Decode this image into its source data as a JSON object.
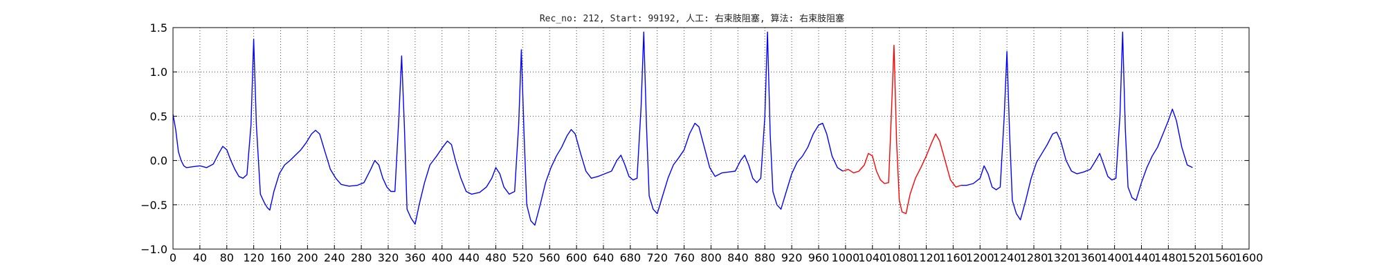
{
  "chart_data": {
    "type": "line",
    "title": "Rec_no: 212, Start: 99192, 人工: 右束肢阻塞, 算法: 右束肢阻塞",
    "xlabel": "",
    "ylabel": "",
    "xlim": [
      0,
      1600
    ],
    "ylim": [
      -1.0,
      1.5
    ],
    "grid": true,
    "y_ticks": [
      -1.0,
      -0.5,
      0.0,
      0.5,
      1.0,
      1.5
    ],
    "y_tick_labels": [
      "−1.0",
      "−0.5",
      "0.0",
      "0.5",
      "1.0",
      "1.5"
    ],
    "x_ticks": [
      0,
      40,
      80,
      120,
      160,
      200,
      240,
      280,
      320,
      360,
      400,
      440,
      480,
      520,
      560,
      600,
      640,
      680,
      720,
      760,
      800,
      840,
      880,
      920,
      960,
      1000,
      1040,
      1080,
      1120,
      1160,
      1200,
      1240,
      1280,
      1320,
      1360,
      1400,
      1440,
      1480,
      1520,
      1560,
      1600
    ],
    "x_tick_labels": [
      "0",
      "40",
      "80",
      "120",
      "160",
      "200",
      "240",
      "280",
      "320",
      "360",
      "400",
      "440",
      "480",
      "520",
      "560",
      "600",
      "640",
      "680",
      "720",
      "760",
      "800",
      "840",
      "880",
      "920",
      "960",
      "1000",
      "1040",
      "1080",
      "1120",
      "1160",
      "1200",
      "1240",
      "1280",
      "1320",
      "1360",
      "1400",
      "1440",
      "1480",
      "1520",
      "1560",
      "1600"
    ],
    "series": [
      {
        "color": "#0000ff",
        "points": [
          [
            0,
            0.52
          ],
          [
            4,
            0.35
          ],
          [
            8,
            0.1
          ],
          [
            12,
            0.0
          ],
          [
            16,
            -0.06
          ],
          [
            20,
            -0.08
          ],
          [
            30,
            -0.07
          ],
          [
            40,
            -0.06
          ],
          [
            50,
            -0.08
          ],
          [
            60,
            -0.04
          ],
          [
            68,
            0.08
          ],
          [
            74,
            0.16
          ],
          [
            80,
            0.12
          ],
          [
            86,
            0.0
          ],
          [
            92,
            -0.1
          ],
          [
            98,
            -0.18
          ],
          [
            104,
            -0.2
          ],
          [
            110,
            -0.16
          ],
          [
            116,
            0.4
          ],
          [
            120,
            1.37
          ],
          [
            124,
            0.4
          ],
          [
            130,
            -0.38
          ],
          [
            136,
            -0.48
          ],
          [
            140,
            -0.53
          ],
          [
            144,
            -0.56
          ],
          [
            150,
            -0.35
          ],
          [
            158,
            -0.15
          ],
          [
            166,
            -0.05
          ],
          [
            174,
            0.0
          ],
          [
            182,
            0.06
          ],
          [
            190,
            0.12
          ],
          [
            198,
            0.2
          ],
          [
            206,
            0.3
          ],
          [
            212,
            0.34
          ],
          [
            218,
            0.3
          ],
          [
            226,
            0.1
          ],
          [
            234,
            -0.1
          ],
          [
            242,
            -0.2
          ],
          [
            250,
            -0.27
          ],
          [
            262,
            -0.29
          ],
          [
            274,
            -0.28
          ],
          [
            284,
            -0.25
          ],
          [
            294,
            -0.1
          ],
          [
            300,
            0.0
          ],
          [
            306,
            -0.05
          ],
          [
            312,
            -0.2
          ],
          [
            318,
            -0.3
          ],
          [
            324,
            -0.35
          ],
          [
            330,
            -0.35
          ],
          [
            336,
            0.5
          ],
          [
            340,
            1.18
          ],
          [
            344,
            0.4
          ],
          [
            348,
            -0.55
          ],
          [
            354,
            -0.65
          ],
          [
            360,
            -0.72
          ],
          [
            366,
            -0.5
          ],
          [
            374,
            -0.25
          ],
          [
            382,
            -0.05
          ],
          [
            392,
            0.05
          ],
          [
            400,
            0.14
          ],
          [
            408,
            0.22
          ],
          [
            414,
            0.18
          ],
          [
            420,
            0.0
          ],
          [
            428,
            -0.2
          ],
          [
            436,
            -0.35
          ],
          [
            444,
            -0.38
          ],
          [
            456,
            -0.36
          ],
          [
            466,
            -0.3
          ],
          [
            474,
            -0.2
          ],
          [
            480,
            -0.08
          ],
          [
            486,
            -0.15
          ],
          [
            492,
            -0.3
          ],
          [
            500,
            -0.38
          ],
          [
            508,
            -0.35
          ],
          [
            514,
            0.4
          ],
          [
            518,
            1.25
          ],
          [
            522,
            0.3
          ],
          [
            526,
            -0.5
          ],
          [
            532,
            -0.68
          ],
          [
            538,
            -0.73
          ],
          [
            546,
            -0.5
          ],
          [
            554,
            -0.25
          ],
          [
            562,
            -0.08
          ],
          [
            570,
            0.05
          ],
          [
            578,
            0.15
          ],
          [
            586,
            0.28
          ],
          [
            592,
            0.35
          ],
          [
            598,
            0.3
          ],
          [
            606,
            0.08
          ],
          [
            614,
            -0.12
          ],
          [
            622,
            -0.2
          ],
          [
            632,
            -0.18
          ],
          [
            642,
            -0.15
          ],
          [
            652,
            -0.12
          ],
          [
            660,
            0.0
          ],
          [
            666,
            0.06
          ],
          [
            672,
            -0.05
          ],
          [
            678,
            -0.18
          ],
          [
            684,
            -0.22
          ],
          [
            690,
            -0.2
          ],
          [
            696,
            0.6
          ],
          [
            700,
            1.45
          ],
          [
            704,
            0.4
          ],
          [
            708,
            -0.4
          ],
          [
            714,
            -0.55
          ],
          [
            720,
            -0.6
          ],
          [
            728,
            -0.4
          ],
          [
            736,
            -0.2
          ],
          [
            744,
            -0.05
          ],
          [
            752,
            0.03
          ],
          [
            760,
            0.12
          ],
          [
            768,
            0.3
          ],
          [
            776,
            0.42
          ],
          [
            782,
            0.38
          ],
          [
            790,
            0.15
          ],
          [
            798,
            -0.08
          ],
          [
            806,
            -0.18
          ],
          [
            816,
            -0.14
          ],
          [
            826,
            -0.13
          ],
          [
            836,
            -0.12
          ],
          [
            844,
            0.0
          ],
          [
            850,
            0.06
          ],
          [
            856,
            -0.05
          ],
          [
            862,
            -0.2
          ],
          [
            868,
            -0.25
          ],
          [
            874,
            -0.2
          ],
          [
            880,
            0.5
          ],
          [
            884,
            1.45
          ],
          [
            888,
            0.3
          ],
          [
            892,
            -0.35
          ],
          [
            898,
            -0.5
          ],
          [
            904,
            -0.55
          ],
          [
            912,
            -0.35
          ],
          [
            920,
            -0.15
          ],
          [
            928,
            -0.02
          ],
          [
            936,
            0.05
          ],
          [
            944,
            0.15
          ],
          [
            952,
            0.3
          ],
          [
            960,
            0.4
          ],
          [
            966,
            0.42
          ],
          [
            972,
            0.3
          ],
          [
            980,
            0.05
          ],
          [
            988,
            -0.08
          ],
          [
            996,
            -0.12
          ]
        ]
      },
      {
        "color": "#ff0000",
        "points": [
          [
            996,
            -0.12
          ],
          [
            1004,
            -0.1
          ],
          [
            1012,
            -0.14
          ],
          [
            1020,
            -0.12
          ],
          [
            1028,
            -0.05
          ],
          [
            1034,
            0.08
          ],
          [
            1040,
            0.05
          ],
          [
            1046,
            -0.12
          ],
          [
            1052,
            -0.22
          ],
          [
            1058,
            -0.26
          ],
          [
            1064,
            -0.25
          ],
          [
            1068,
            0.5
          ],
          [
            1072,
            1.3
          ],
          [
            1076,
            0.2
          ],
          [
            1080,
            -0.45
          ],
          [
            1084,
            -0.58
          ],
          [
            1090,
            -0.6
          ],
          [
            1096,
            -0.38
          ],
          [
            1104,
            -0.2
          ],
          [
            1112,
            -0.08
          ],
          [
            1120,
            0.05
          ],
          [
            1128,
            0.2
          ],
          [
            1134,
            0.3
          ],
          [
            1140,
            0.22
          ],
          [
            1148,
            0.0
          ],
          [
            1156,
            -0.22
          ],
          [
            1164,
            -0.3
          ],
          [
            1172,
            -0.28
          ]
        ]
      },
      {
        "color": "#0000ff",
        "points": [
          [
            1172,
            -0.28
          ],
          [
            1180,
            -0.28
          ],
          [
            1190,
            -0.26
          ],
          [
            1200,
            -0.2
          ],
          [
            1206,
            -0.06
          ],
          [
            1212,
            -0.15
          ],
          [
            1218,
            -0.3
          ],
          [
            1224,
            -0.33
          ],
          [
            1230,
            -0.3
          ],
          [
            1236,
            0.5
          ],
          [
            1240,
            1.23
          ],
          [
            1244,
            0.3
          ],
          [
            1248,
            -0.45
          ],
          [
            1254,
            -0.6
          ],
          [
            1260,
            -0.67
          ],
          [
            1268,
            -0.45
          ],
          [
            1276,
            -0.2
          ],
          [
            1284,
            -0.02
          ],
          [
            1292,
            0.08
          ],
          [
            1300,
            0.18
          ],
          [
            1308,
            0.3
          ],
          [
            1314,
            0.32
          ],
          [
            1320,
            0.22
          ],
          [
            1328,
            0.0
          ],
          [
            1336,
            -0.12
          ],
          [
            1344,
            -0.15
          ],
          [
            1354,
            -0.13
          ],
          [
            1364,
            -0.1
          ],
          [
            1372,
            0.0
          ],
          [
            1378,
            0.08
          ],
          [
            1384,
            -0.05
          ],
          [
            1390,
            -0.18
          ],
          [
            1396,
            -0.22
          ],
          [
            1402,
            -0.2
          ],
          [
            1408,
            0.5
          ],
          [
            1412,
            1.45
          ],
          [
            1416,
            0.35
          ],
          [
            1420,
            -0.3
          ],
          [
            1426,
            -0.42
          ],
          [
            1432,
            -0.45
          ],
          [
            1440,
            -0.25
          ],
          [
            1448,
            -0.08
          ],
          [
            1456,
            0.05
          ],
          [
            1464,
            0.15
          ],
          [
            1472,
            0.3
          ],
          [
            1480,
            0.45
          ],
          [
            1486,
            0.58
          ],
          [
            1492,
            0.45
          ],
          [
            1500,
            0.15
          ],
          [
            1508,
            -0.05
          ],
          [
            1516,
            -0.08
          ]
        ]
      }
    ]
  }
}
